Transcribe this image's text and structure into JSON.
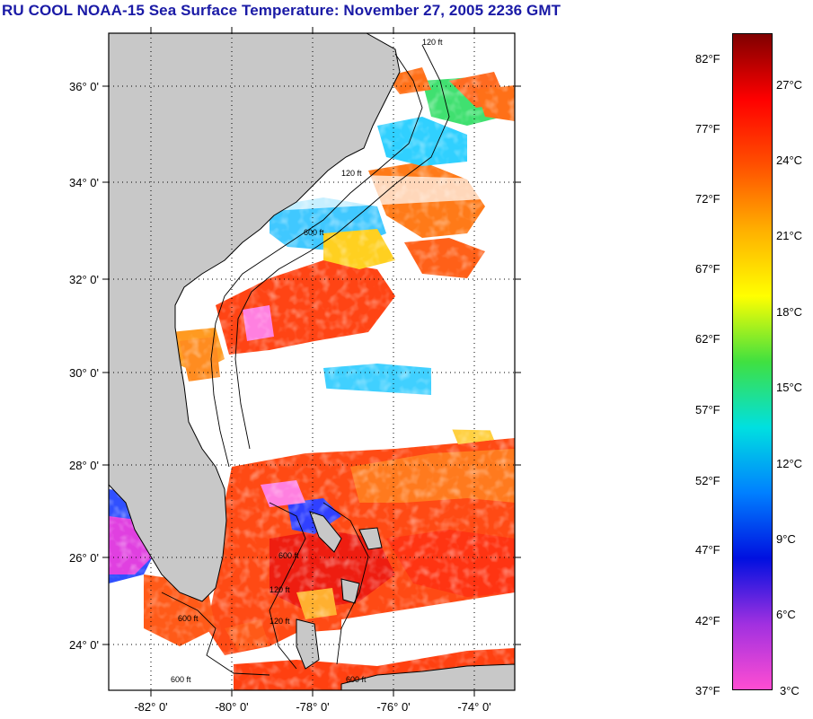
{
  "title": "RU COOL  NOAA-15  Sea Surface Temperature:  November 27, 2005 2236 GMT",
  "map": {
    "lat_labels": [
      "36° 0'",
      "34° 0'",
      "32° 0'",
      "30° 0'",
      "28° 0'",
      "26° 0'",
      "24° 0'"
    ],
    "lon_labels": [
      "-82° 0'",
      "-80° 0'",
      "-78° 0'",
      "-76° 0'",
      "-74° 0'"
    ],
    "isobath_labels": [
      "120 ft",
      "600 ft",
      "120 ft",
      "600 ft",
      "600 ft",
      "120 ft",
      "600 ft",
      "120 ft",
      "600 ft"
    ],
    "colors": {
      "land": "#c8c8c8",
      "cloud": "#ffffff",
      "warm_water": "#ff3a10",
      "cool_water": "#40d0ff"
    }
  },
  "colorbar": {
    "fahrenheit": [
      "82°F",
      "77°F",
      "72°F",
      "67°F",
      "62°F",
      "57°F",
      "52°F",
      "47°F",
      "42°F",
      "37°F"
    ],
    "celsius": [
      "27°C",
      "24°C",
      "21°C",
      "18°C",
      "15°C",
      "12°C",
      "9°C",
      "6°C",
      "3°C"
    ],
    "stops": [
      "#ff4dd2",
      "#a030e0",
      "#0010e0",
      "#0080ff",
      "#00e0e0",
      "#40e040",
      "#ffff00",
      "#ffb000",
      "#ff5000",
      "#ff0000",
      "#800000"
    ]
  }
}
